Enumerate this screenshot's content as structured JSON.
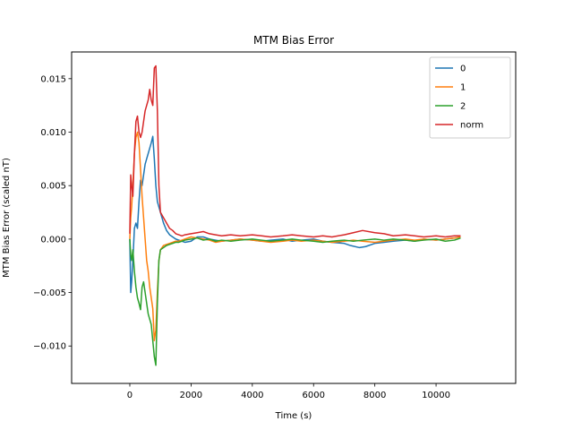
{
  "chart_data": {
    "type": "line",
    "title": "MTM Bias Error",
    "xlabel": "Time (s)",
    "ylabel": "MTM Bias Error (scaled nT)",
    "xlim": [
      -1900,
      12600
    ],
    "ylim": [
      -0.0135,
      0.0175
    ],
    "x_ticks": [
      0,
      2000,
      4000,
      6000,
      8000,
      10000
    ],
    "x_tick_labels": [
      "0",
      "2000",
      "4000",
      "6000",
      "8000",
      "10000"
    ],
    "y_ticks": [
      -0.01,
      -0.005,
      0.0,
      0.005,
      0.01,
      0.015
    ],
    "y_tick_labels": [
      "−0.010",
      "−0.005",
      "0.000",
      "0.005",
      "0.010",
      "0.015"
    ],
    "grid": false,
    "legend_position": "upper right",
    "series": [
      {
        "name": "0",
        "color": "#1f77b4",
        "x": [
          0,
          30,
          60,
          100,
          150,
          200,
          250,
          300,
          350,
          400,
          450,
          500,
          550,
          600,
          650,
          700,
          750,
          800,
          850,
          900,
          950,
          1000,
          1100,
          1200,
          1300,
          1400,
          1500,
          1600,
          1700,
          1800,
          2000,
          2200,
          2400,
          2600,
          2800,
          3000,
          3300,
          3600,
          4000,
          4300,
          4600,
          5000,
          5300,
          5600,
          6000,
          6300,
          6600,
          7000,
          7200,
          7500,
          7700,
          8000,
          8300,
          8600,
          9000,
          9300,
          9600,
          10000,
          10300,
          10600,
          10800
        ],
        "y": [
          0.0,
          -0.005,
          -0.004,
          -0.002,
          0.001,
          0.0015,
          0.001,
          0.0035,
          0.0055,
          0.005,
          0.006,
          0.007,
          0.0075,
          0.008,
          0.0085,
          0.009,
          0.0096,
          0.0075,
          0.005,
          0.0035,
          0.003,
          0.0025,
          0.0015,
          0.0008,
          0.0004,
          0.0002,
          0.0,
          -0.0001,
          -0.0002,
          -0.0003,
          -0.0002,
          0.0002,
          0.0002,
          0.0,
          -0.0001,
          -0.0002,
          -0.0001,
          0.0,
          -0.0001,
          -0.0002,
          -0.0001,
          0.0,
          -0.0002,
          -0.0001,
          0.0,
          -0.0002,
          -0.0003,
          -0.0004,
          -0.0006,
          -0.0008,
          -0.0007,
          -0.0004,
          -0.0003,
          -0.0002,
          -0.0001,
          -0.0002,
          0.0,
          -0.0001,
          0.0,
          0.0001,
          0.0002
        ]
      },
      {
        "name": "1",
        "color": "#ff7f0e",
        "x": [
          0,
          30,
          60,
          100,
          150,
          200,
          250,
          300,
          350,
          400,
          450,
          500,
          550,
          600,
          650,
          700,
          750,
          800,
          850,
          900,
          950,
          1000,
          1100,
          1200,
          1300,
          1400,
          1500,
          1600,
          1700,
          1800,
          2000,
          2200,
          2400,
          2600,
          2800,
          3000,
          3300,
          3600,
          4000,
          4300,
          4600,
          5000,
          5300,
          5600,
          6000,
          6300,
          6600,
          7000,
          7300,
          7600,
          8000,
          8300,
          8600,
          9000,
          9300,
          9600,
          10000,
          10300,
          10600,
          10800
        ],
        "y": [
          0.0,
          0.002,
          0.003,
          0.005,
          0.008,
          0.0095,
          0.01,
          0.009,
          0.0065,
          0.004,
          0.002,
          0.0,
          -0.002,
          -0.003,
          -0.0045,
          -0.0055,
          -0.0065,
          -0.0095,
          -0.0085,
          -0.005,
          -0.002,
          -0.001,
          -0.0006,
          -0.0005,
          -0.0004,
          -0.0003,
          -0.0002,
          -0.0002,
          -0.0001,
          0.0,
          0.0002,
          0.0001,
          0.0,
          -0.0001,
          -0.0003,
          -0.0002,
          -0.0001,
          0.0,
          -0.0001,
          -0.0002,
          -0.0003,
          -0.0002,
          -0.0001,
          -0.0002,
          -0.0001,
          -0.0002,
          -0.0003,
          -0.0002,
          -0.0001,
          -0.0002,
          -0.0003,
          -0.0002,
          -0.0001,
          0.0,
          -0.0001,
          0.0,
          -0.0001,
          0.0,
          0.0001,
          0.0002
        ]
      },
      {
        "name": "2",
        "color": "#2ca02c",
        "x": [
          0,
          30,
          60,
          100,
          150,
          200,
          250,
          300,
          350,
          400,
          450,
          500,
          550,
          600,
          650,
          700,
          750,
          800,
          850,
          900,
          950,
          1000,
          1100,
          1200,
          1300,
          1400,
          1500,
          1600,
          1700,
          1800,
          2000,
          2200,
          2400,
          2600,
          2800,
          3000,
          3300,
          3600,
          4000,
          4300,
          4600,
          5000,
          5300,
          5600,
          6000,
          6300,
          6600,
          7000,
          7300,
          7600,
          8000,
          8300,
          8600,
          9000,
          9300,
          9600,
          10000,
          10300,
          10600,
          10800
        ],
        "y": [
          0.0,
          -0.0015,
          -0.002,
          -0.001,
          -0.003,
          -0.0045,
          -0.0055,
          -0.006,
          -0.0066,
          -0.0045,
          -0.004,
          -0.005,
          -0.006,
          -0.007,
          -0.0075,
          -0.008,
          -0.0095,
          -0.011,
          -0.0118,
          -0.006,
          -0.002,
          -0.001,
          -0.0008,
          -0.0006,
          -0.0005,
          -0.0004,
          -0.0003,
          -0.0003,
          -0.0002,
          -0.0001,
          0.0,
          0.0001,
          -0.0001,
          0.0,
          -0.0002,
          -0.0001,
          -0.0002,
          -0.0001,
          0.0,
          -0.0001,
          -0.0002,
          -0.0001,
          0.0,
          -0.0001,
          -0.0002,
          -0.0003,
          -0.0002,
          -0.0001,
          -0.0002,
          -0.0001,
          0.0,
          -0.0001,
          0.0,
          -0.0001,
          -0.0002,
          -0.0001,
          0.0,
          -0.0002,
          -0.0001,
          0.0001
        ]
      },
      {
        "name": "norm",
        "color": "#d62728",
        "x": [
          0,
          30,
          60,
          100,
          150,
          200,
          250,
          300,
          350,
          400,
          450,
          500,
          550,
          600,
          650,
          700,
          750,
          800,
          850,
          900,
          950,
          1000,
          1100,
          1200,
          1300,
          1400,
          1500,
          1600,
          1700,
          1800,
          2000,
          2200,
          2400,
          2600,
          2800,
          3000,
          3300,
          3600,
          4000,
          4300,
          4600,
          5000,
          5300,
          5600,
          6000,
          6300,
          6600,
          7000,
          7300,
          7600,
          8000,
          8300,
          8600,
          9000,
          9300,
          9600,
          10000,
          10300,
          10600,
          10800
        ],
        "y": [
          0.0005,
          0.006,
          0.005,
          0.004,
          0.008,
          0.011,
          0.0115,
          0.01,
          0.0095,
          0.01,
          0.011,
          0.012,
          0.0125,
          0.013,
          0.014,
          0.013,
          0.0125,
          0.016,
          0.0162,
          0.012,
          0.005,
          0.0025,
          0.002,
          0.0015,
          0.001,
          0.0008,
          0.0005,
          0.0004,
          0.0003,
          0.0004,
          0.0005,
          0.0006,
          0.0007,
          0.0005,
          0.0004,
          0.0003,
          0.0004,
          0.0003,
          0.0004,
          0.0003,
          0.0002,
          0.0003,
          0.0004,
          0.0003,
          0.0002,
          0.0003,
          0.0002,
          0.0004,
          0.0006,
          0.0008,
          0.0006,
          0.0005,
          0.0003,
          0.0004,
          0.0003,
          0.0002,
          0.0003,
          0.0002,
          0.0003,
          0.0003
        ]
      }
    ]
  }
}
